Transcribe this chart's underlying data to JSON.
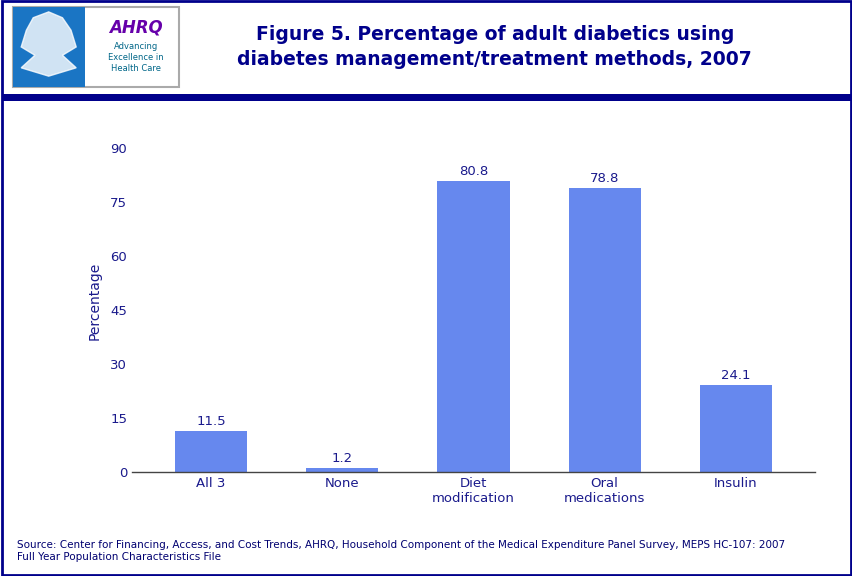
{
  "categories": [
    "All 3",
    "None",
    "Diet\nmodification",
    "Oral\nmedications",
    "Insulin"
  ],
  "values": [
    11.5,
    1.2,
    80.8,
    78.8,
    24.1
  ],
  "bar_color": "#6688ee",
  "title_line1": "Figure 5. Percentage of adult diabetics using",
  "title_line2": "diabetes management/treatment methods, 2007",
  "ylabel": "Percentage",
  "yticks": [
    0,
    15,
    30,
    45,
    60,
    75,
    90
  ],
  "ylim": [
    0,
    95
  ],
  "title_color": "#00008B",
  "ylabel_color": "#1a1a8c",
  "tick_label_color": "#1a1a8c",
  "bar_label_color": "#1a1a8c",
  "source_text": "Source: Center for Financing, Access, and Cost Trends, AHRQ, Household Component of the Medical Expenditure Panel Survey, MEPS HC-107: 2007\nFull Year Population Characteristics File",
  "source_color": "#000070",
  "background_color": "#ffffff",
  "header_bg_color": "#ffffff",
  "header_line_color": "#00008B",
  "outer_border_color": "#00008B",
  "title_fontsize": 13.5,
  "ylabel_fontsize": 10,
  "tick_fontsize": 9.5,
  "bar_label_fontsize": 9.5,
  "source_fontsize": 7.5
}
